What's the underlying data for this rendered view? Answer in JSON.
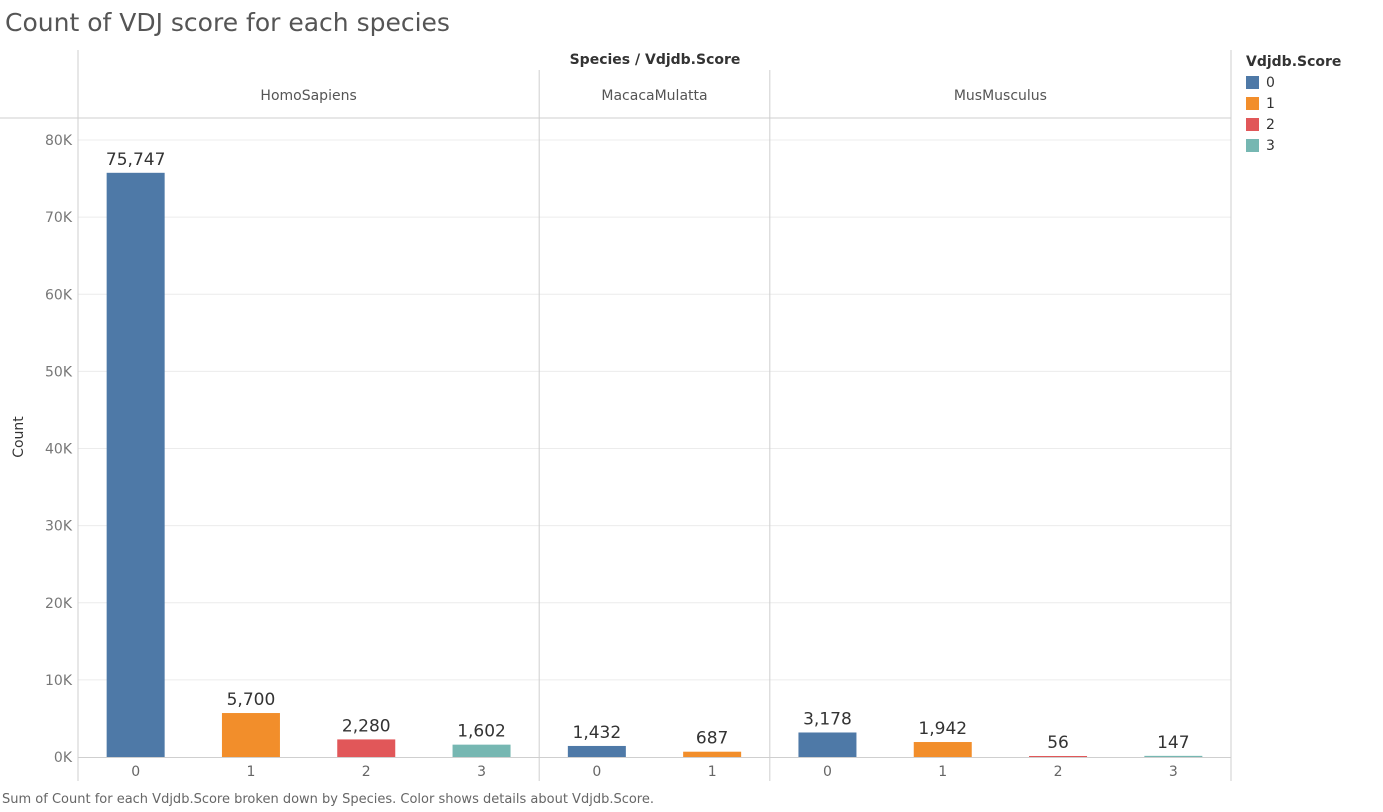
{
  "title": "Count of VDJ score for each species",
  "footer": "Sum of Count for each Vdjdb.Score broken down by Species.  Color shows details about Vdjdb.Score.",
  "header_title": "Species / Vdjdb.Score",
  "legend": {
    "title": "Vdjdb.Score",
    "items": [
      {
        "label": "0",
        "color": "#4e79a7"
      },
      {
        "label": "1",
        "color": "#f28e2b"
      },
      {
        "label": "2",
        "color": "#e15759"
      },
      {
        "label": "3",
        "color": "#76b7b2"
      }
    ]
  },
  "chart_data": {
    "type": "bar",
    "title": "Count of VDJ score for each species",
    "ylabel": "Count",
    "ylim": [
      0,
      80000
    ],
    "yticks": [
      {
        "value": 0,
        "label": "0K"
      },
      {
        "value": 10000,
        "label": "10K"
      },
      {
        "value": 20000,
        "label": "20K"
      },
      {
        "value": 30000,
        "label": "30K"
      },
      {
        "value": 40000,
        "label": "40K"
      },
      {
        "value": 50000,
        "label": "50K"
      },
      {
        "value": 60000,
        "label": "60K"
      },
      {
        "value": 70000,
        "label": "70K"
      },
      {
        "value": 80000,
        "label": "80K"
      }
    ],
    "grid": true,
    "legend_position": "top-right",
    "panels": [
      {
        "name": "HomoSapiens",
        "categories": [
          "0",
          "1",
          "2",
          "3"
        ],
        "values": [
          75747,
          5700,
          2280,
          1602
        ],
        "labels": [
          "75,747",
          "5,700",
          "2,280",
          "1,602"
        ]
      },
      {
        "name": "MacacaMulatta",
        "categories": [
          "0",
          "1"
        ],
        "values": [
          1432,
          687
        ],
        "labels": [
          "1,432",
          "687"
        ]
      },
      {
        "name": "MusMusculus",
        "categories": [
          "0",
          "1",
          "2",
          "3"
        ],
        "values": [
          3178,
          1942,
          56,
          147
        ],
        "labels": [
          "3,178",
          "1,942",
          "56",
          "147"
        ]
      }
    ]
  }
}
